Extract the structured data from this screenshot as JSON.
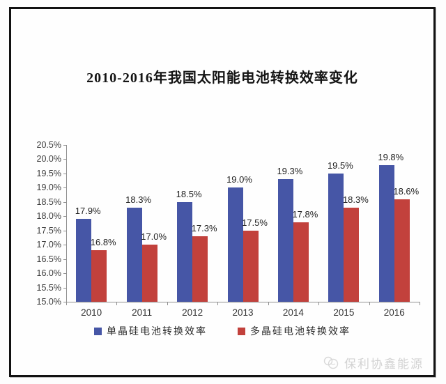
{
  "page": {
    "watermark": {
      "label": "保利协鑫能源",
      "icon": "gcl-logo-icon"
    }
  },
  "chart_data": {
    "type": "bar",
    "title": "2010-2016年我国太阳能电池转换效率变化",
    "categories": [
      "2010",
      "2011",
      "2012",
      "2013",
      "2014",
      "2015",
      "2016"
    ],
    "series": [
      {
        "name": "单晶硅电池转换效率",
        "color": "#4656A6",
        "values": [
          17.9,
          18.3,
          18.5,
          19.0,
          19.3,
          19.5,
          19.8
        ],
        "data_labels": [
          "17.9%",
          "18.3%",
          "18.5%",
          "19.0%",
          "19.3%",
          "19.5%",
          "19.8%"
        ]
      },
      {
        "name": "多晶硅电池转换效率",
        "color": "#C2413C",
        "values": [
          16.8,
          17.0,
          17.3,
          17.5,
          17.8,
          18.3,
          18.6
        ],
        "data_labels": [
          "16.8%",
          "17.0%",
          "17.3%",
          "17.5%",
          "17.8%",
          "18.3%",
          "18.6%"
        ]
      }
    ],
    "xlabel": "",
    "ylabel": "",
    "ylim": [
      15.0,
      20.5
    ],
    "ytick_step": 0.5,
    "ytick_labels": [
      "15.0%",
      "15.5%",
      "16.0%",
      "16.5%",
      "17.0%",
      "17.5%",
      "18.0%",
      "18.5%",
      "19.0%",
      "19.5%",
      "20.0%",
      "20.5%"
    ],
    "grid": false,
    "legend_position": "bottom",
    "axis_color": "#8f8f8f"
  }
}
